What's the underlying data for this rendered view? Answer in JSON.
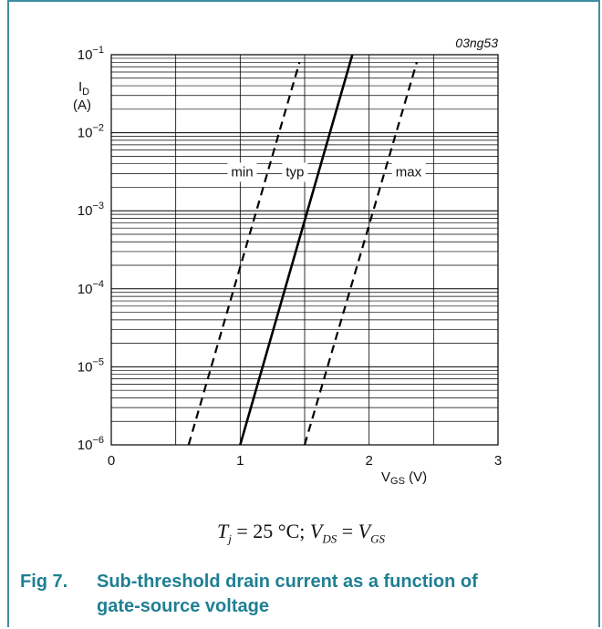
{
  "figure": {
    "code": "03ng53",
    "caption_number": "Fig 7.",
    "caption_line1": "Sub-threshold drain current as a function of",
    "caption_line2": "gate-source voltage"
  },
  "conditions": {
    "tj_symbol": "T",
    "tj_sub": "j",
    "tj_value": " = 25 °C; ",
    "vds_symbol": "V",
    "vds_sub": "DS",
    "equals": " = ",
    "vgs_symbol": "V",
    "vgs_sub": "GS"
  },
  "chart_data": {
    "type": "line",
    "xlabel": "V_GS (V)",
    "ylabel": "I_D (A)",
    "xlim": [
      0,
      3
    ],
    "ylim": [
      1e-06,
      0.1
    ],
    "yscale": "log",
    "grid": true,
    "x_ticks": [
      "0",
      "1",
      "2",
      "3"
    ],
    "y_ticks": [
      {
        "base": "10",
        "exp": "−1"
      },
      {
        "base": "10",
        "exp": "−2"
      },
      {
        "base": "10",
        "exp": "−3"
      },
      {
        "base": "10",
        "exp": "−4"
      },
      {
        "base": "10",
        "exp": "−5"
      },
      {
        "base": "10",
        "exp": "−6"
      }
    ],
    "series": [
      {
        "name": "min",
        "style": "dashed",
        "x": [
          0.6,
          1.46
        ],
        "y": [
          1e-06,
          0.08
        ]
      },
      {
        "name": "typ",
        "style": "solid",
        "x": [
          1.0,
          1.87
        ],
        "y": [
          1e-06,
          0.1
        ]
      },
      {
        "name": "max",
        "style": "dashed",
        "x": [
          1.5,
          2.37
        ],
        "y": [
          1e-06,
          0.08
        ]
      }
    ]
  }
}
